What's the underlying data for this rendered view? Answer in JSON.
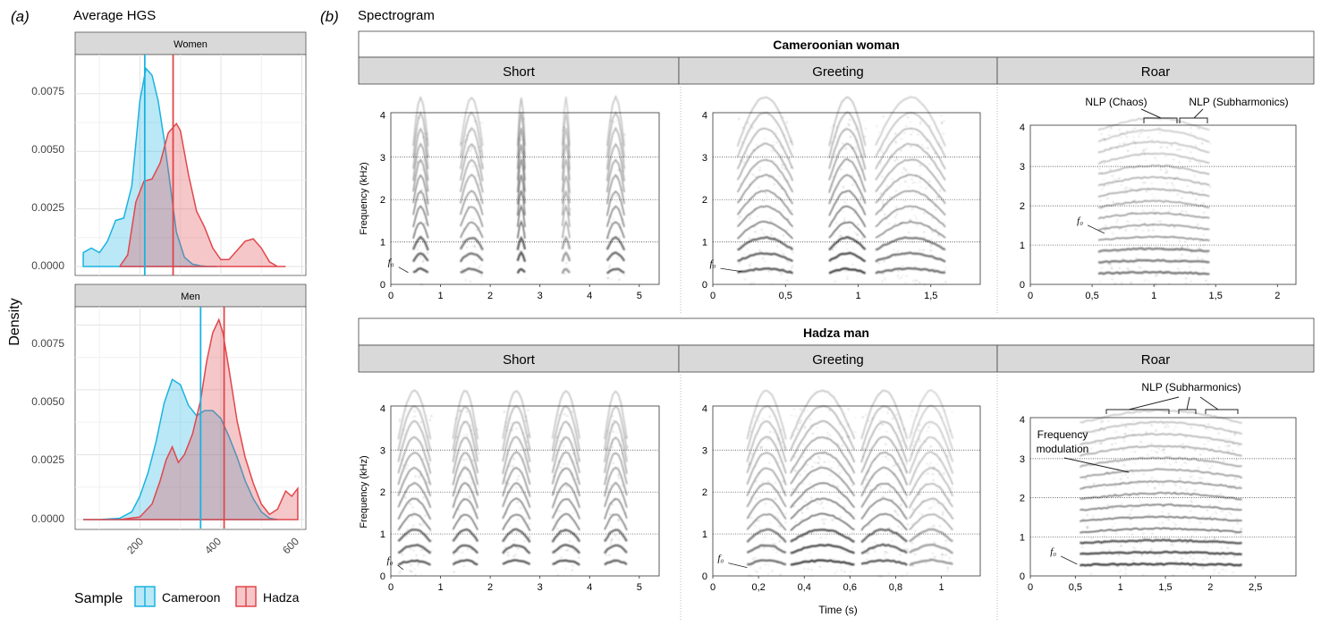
{
  "panel_a": {
    "letter": "(a)",
    "title": "Average HGS",
    "ylabel": "Density",
    "x_ticks": [
      "200",
      "400",
      "600"
    ],
    "y_ticks": [
      "0.0000",
      "0.0025",
      "0.0050",
      "0.0075"
    ],
    "facets": [
      "Women",
      "Men"
    ],
    "legend": {
      "title": "Sample",
      "items": [
        "Cameroon",
        "Hadza"
      ]
    }
  },
  "panel_b": {
    "letter": "(b)",
    "title": "Spectrogram",
    "xlabel": "Time (s)",
    "ylabel": "Frequency (kHz)",
    "y_ticks": [
      "0",
      "1",
      "2",
      "3",
      "4"
    ],
    "f0_label": "f₀",
    "rows": [
      {
        "title": "Cameroonian woman",
        "cols": [
          "Short",
          "Greeting",
          "Roar"
        ],
        "x_ticks": [
          [
            "0",
            "1",
            "2",
            "3",
            "4",
            "5"
          ],
          [
            "0",
            "0,5",
            "1",
            "1,5"
          ],
          [
            "0",
            "0,5",
            "1",
            "1,5",
            "2"
          ]
        ],
        "annotations": [
          "NLP (Chaos)",
          "NLP (Subharmonics)"
        ]
      },
      {
        "title": "Hadza man",
        "cols": [
          "Short",
          "Greeting",
          "Roar"
        ],
        "x_ticks": [
          [
            "0",
            "1",
            "2",
            "3",
            "4",
            "5"
          ],
          [
            "0",
            "0,2",
            "0,4",
            "0,6",
            "0,8",
            "1"
          ],
          [
            "0",
            "0,5",
            "1",
            "1,5",
            "2",
            "2,5"
          ]
        ],
        "annotations": [
          "NLP (Subharmonics)",
          "Frequency",
          "modulation"
        ]
      }
    ]
  },
  "colors": {
    "cameroon": "#1ab3e0",
    "hadza": "#e0474c",
    "strip": "#d9d9d9"
  },
  "chart_data": [
    {
      "type": "area",
      "facet": "Women",
      "xlim": [
        40,
        610
      ],
      "ylim": [
        0,
        0.0092
      ],
      "grid": true,
      "series": [
        {
          "name": "Cameroon",
          "x": [
            60,
            80,
            100,
            120,
            140,
            160,
            180,
            200,
            215,
            230,
            245,
            260,
            275,
            290,
            310,
            330,
            350,
            370,
            390
          ],
          "y": [
            0.0006,
            0.0008,
            0.0006,
            0.0011,
            0.002,
            0.0021,
            0.0035,
            0.0072,
            0.0086,
            0.0083,
            0.0072,
            0.0055,
            0.0035,
            0.0015,
            0.0004,
            0.0001,
            3e-05,
            0.0,
            0.0
          ],
          "mean": 212
        },
        {
          "name": "Hadza",
          "x": [
            150,
            170,
            190,
            210,
            230,
            250,
            270,
            290,
            300,
            320,
            340,
            360,
            380,
            400,
            420,
            440,
            460,
            480,
            500,
            520,
            540,
            560
          ],
          "y": [
            0.0,
            0.0005,
            0.0028,
            0.0037,
            0.0038,
            0.0045,
            0.0058,
            0.0062,
            0.0059,
            0.004,
            0.0024,
            0.0017,
            0.0008,
            0.0003,
            0.0003,
            0.0007,
            0.0011,
            0.0012,
            0.0008,
            0.0002,
            0.0,
            0.0
          ],
          "mean": 282
        }
      ]
    },
    {
      "type": "area",
      "facet": "Men",
      "xlim": [
        40,
        610
      ],
      "ylim": [
        0,
        0.0082
      ],
      "grid": true,
      "series": [
        {
          "name": "Cameroon",
          "x": [
            60,
            100,
            150,
            180,
            200,
            220,
            240,
            260,
            280,
            300,
            320,
            340,
            360,
            380,
            400,
            420,
            440,
            460,
            480,
            500,
            520,
            540
          ],
          "y": [
            0.0,
            0.0,
            5e-05,
            0.0003,
            0.0009,
            0.0018,
            0.003,
            0.0045,
            0.0054,
            0.0052,
            0.0044,
            0.004,
            0.0042,
            0.0042,
            0.0039,
            0.0032,
            0.0024,
            0.0015,
            0.0008,
            0.0003,
            5e-05,
            0.0
          ],
          "mean": 350
        },
        {
          "name": "Hadza",
          "x": [
            60,
            150,
            200,
            230,
            250,
            265,
            280,
            295,
            310,
            330,
            350,
            365,
            380,
            395,
            405,
            420,
            440,
            460,
            480,
            500,
            520,
            540,
            560,
            575,
            590
          ],
          "y": [
            0.0,
            0.0,
            0.0001,
            0.0006,
            0.0015,
            0.0023,
            0.0028,
            0.0022,
            0.0025,
            0.0033,
            0.0046,
            0.0061,
            0.0072,
            0.0077,
            0.0072,
            0.0058,
            0.0038,
            0.0024,
            0.0014,
            0.0006,
            0.0002,
            0.0004,
            0.0011,
            0.0009,
            0.0012
          ],
          "mean": 408
        }
      ]
    }
  ]
}
